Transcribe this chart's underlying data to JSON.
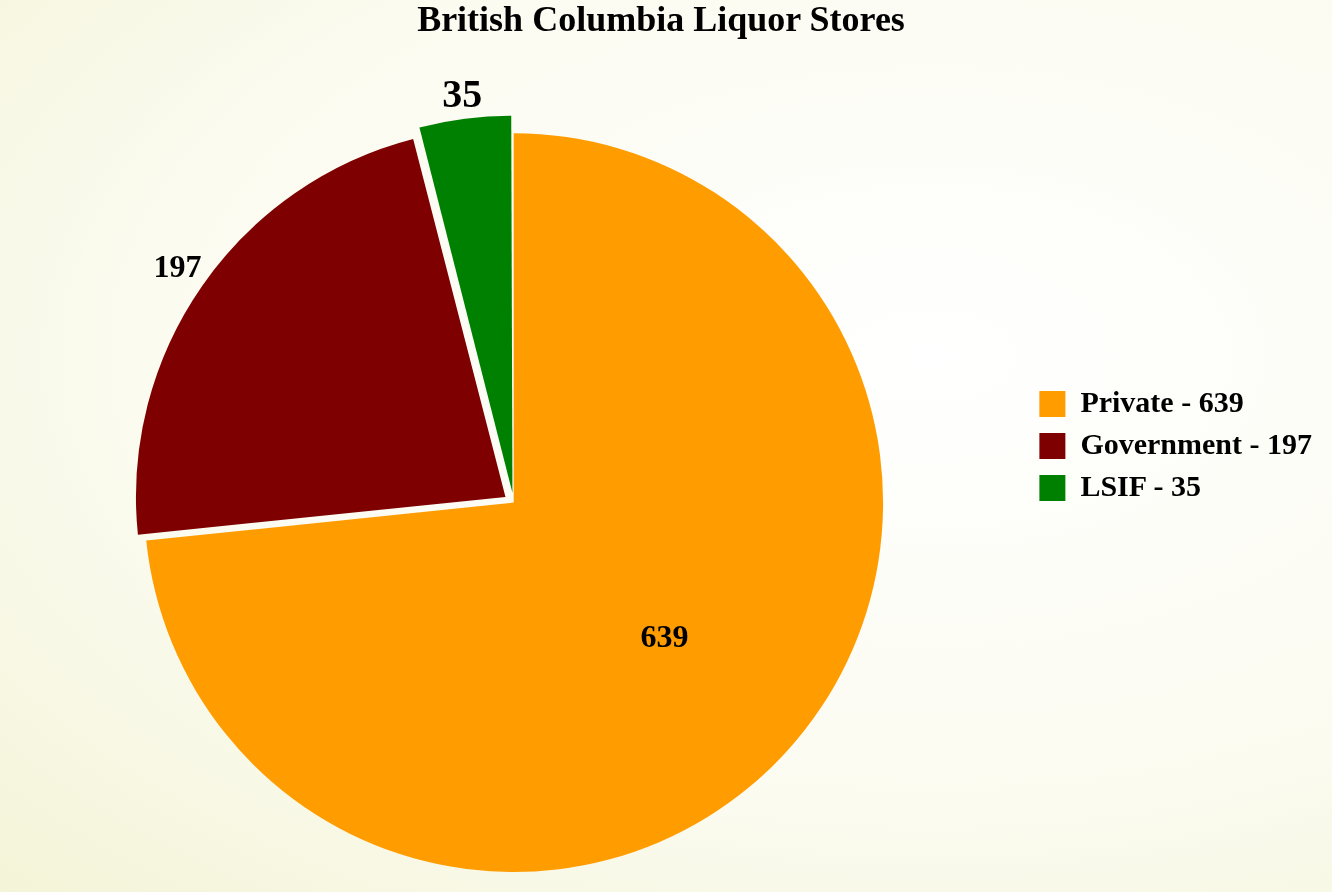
{
  "chart_data": {
    "type": "pie",
    "title": "British Columbia Liquor Stores",
    "categories": [
      "Private - 639",
      "Government - 197",
      "LSIF - 35"
    ],
    "values": [
      639,
      197,
      35
    ],
    "colors": [
      "#ff9c00",
      "#7f0000",
      "#008000"
    ],
    "data_labels": true,
    "legend": "right"
  }
}
